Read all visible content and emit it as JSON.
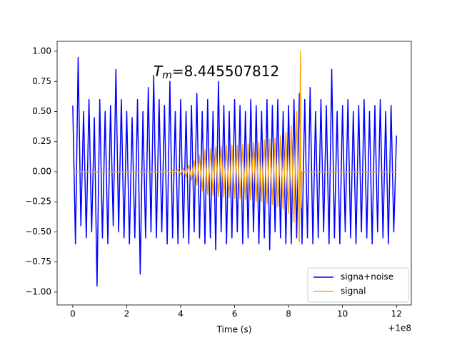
{
  "chart_data": {
    "type": "line",
    "annotation": {
      "symbol": "T",
      "subscript": "m",
      "text": "=8.445507812"
    },
    "x_label": "Time (s)",
    "x_offset_label": "+1e8",
    "xlim": [
      -0.58,
      12.55
    ],
    "xticks": [
      0,
      2,
      4,
      6,
      8,
      10,
      12
    ],
    "ylim": [
      -1.107,
      1.083
    ],
    "yticks": [
      {
        "value": -1,
        "label": "−1.00"
      },
      {
        "value": -0.75,
        "label": "−0.75"
      },
      {
        "value": -0.5,
        "label": "−0.50"
      },
      {
        "value": -0.25,
        "label": "−0.25"
      },
      {
        "value": 0,
        "label": "0.00"
      },
      {
        "value": 0.25,
        "label": "0.25"
      },
      {
        "value": 0.5,
        "label": "0.50"
      },
      {
        "value": 0.75,
        "label": "0.75"
      },
      {
        "value": 1,
        "label": "1.00"
      }
    ],
    "grid": false,
    "legend": "lower right",
    "series": [
      {
        "name": "signa+noise",
        "color": "#0000ff",
        "x": [
          0,
          0.1,
          0.2,
          0.3,
          0.4,
          0.5,
          0.6,
          0.7,
          0.8,
          0.9,
          1,
          1.1,
          1.2,
          1.3,
          1.4,
          1.5,
          1.6,
          1.7,
          1.8,
          1.9,
          2,
          2.1,
          2.2,
          2.3,
          2.4,
          2.5,
          2.6,
          2.7,
          2.8,
          2.9,
          3,
          3.1,
          3.2,
          3.3,
          3.4,
          3.5,
          3.6,
          3.7,
          3.8,
          3.9,
          4,
          4.1,
          4.2,
          4.3,
          4.4,
          4.5,
          4.6,
          4.7,
          4.8,
          4.9,
          5,
          5.1,
          5.2,
          5.3,
          5.4,
          5.5,
          5.6,
          5.7,
          5.8,
          5.9,
          6,
          6.1,
          6.2,
          6.3,
          6.4,
          6.5,
          6.6,
          6.7,
          6.8,
          6.9,
          7,
          7.1,
          7.2,
          7.3,
          7.4,
          7.5,
          7.6,
          7.7,
          7.8,
          7.9,
          8,
          8.1,
          8.2,
          8.3,
          8.4,
          8.5,
          8.6,
          8.7,
          8.8,
          8.9,
          9,
          9.1,
          9.2,
          9.3,
          9.4,
          9.5,
          9.6,
          9.7,
          9.8,
          9.9,
          10,
          10.1,
          10.2,
          10.3,
          10.4,
          10.5,
          10.6,
          10.7,
          10.8,
          10.9,
          11,
          11.1,
          11.2,
          11.3,
          11.4,
          11.5,
          11.6,
          11.7,
          11.8,
          11.9,
          12
        ],
        "values": [
          0.55,
          -0.6,
          0.95,
          -0.45,
          0.5,
          -0.55,
          0.6,
          -0.5,
          0.45,
          -0.95,
          0.6,
          -0.55,
          0.5,
          -0.6,
          0.55,
          -0.45,
          0.85,
          -0.5,
          0.6,
          -0.55,
          0.5,
          -0.6,
          0.45,
          -0.55,
          0.6,
          -0.85,
          0.5,
          -0.55,
          0.7,
          -0.5,
          0.8,
          -0.55,
          0.6,
          -0.5,
          0.55,
          -0.6,
          0.75,
          -0.55,
          0.5,
          -0.6,
          0.6,
          -0.55,
          0.5,
          -0.6,
          0.55,
          -0.5,
          0.65,
          -0.55,
          0.5,
          -0.6,
          0.6,
          -0.55,
          0.5,
          -0.65,
          0.75,
          -0.5,
          0.55,
          -0.6,
          0.5,
          -0.55,
          0.6,
          -0.5,
          0.55,
          -0.6,
          0.5,
          -0.55,
          0.6,
          -0.5,
          0.55,
          -0.6,
          0.5,
          -0.55,
          0.6,
          -0.65,
          0.55,
          -0.5,
          0.6,
          -0.55,
          0.5,
          -0.6,
          0.55,
          -0.6,
          0.6,
          -0.55,
          0.65,
          -0.6,
          0.6,
          -0.55,
          0.7,
          -0.6,
          0.5,
          -0.55,
          0.6,
          -0.5,
          0.55,
          -0.6,
          0.85,
          -0.55,
          0.5,
          -0.6,
          0.55,
          -0.5,
          0.6,
          -0.55,
          0.5,
          -0.6,
          0.55,
          -0.5,
          0.6,
          -0.55,
          0.5,
          -0.6,
          0.55,
          -0.5,
          0.6,
          -0.55,
          0.5,
          -0.6,
          0.55,
          -0.5,
          0.3
        ]
      },
      {
        "name": "signal",
        "color": "#ffa500",
        "x": [
          0,
          3.4,
          3.5,
          3.6,
          3.7,
          3.8,
          3.9,
          4,
          4.1,
          4.2,
          4.3,
          4.4,
          4.5,
          4.6,
          4.7,
          4.8,
          4.9,
          5,
          5.1,
          5.2,
          5.3,
          5.4,
          5.5,
          5.6,
          5.7,
          5.8,
          5.9,
          6,
          6.1,
          6.2,
          6.3,
          6.4,
          6.5,
          6.6,
          6.7,
          6.8,
          6.9,
          7,
          7.1,
          7.2,
          7.3,
          7.4,
          7.5,
          7.6,
          7.7,
          7.8,
          7.9,
          8,
          8.1,
          8.2,
          8.3,
          8.4,
          8.44,
          8.46,
          8.5,
          12
        ],
        "values": [
          0,
          0,
          0.005,
          -0.007,
          0.009,
          -0.01,
          0.015,
          -0.02,
          0.03,
          -0.04,
          0.055,
          -0.07,
          0.09,
          -0.11,
          0.135,
          -0.16,
          0.18,
          -0.19,
          0.195,
          -0.2,
          0.205,
          -0.21,
          0.21,
          -0.21,
          0.215,
          -0.215,
          0.22,
          -0.22,
          0.22,
          -0.225,
          0.225,
          -0.23,
          0.23,
          -0.235,
          0.24,
          -0.245,
          0.245,
          -0.25,
          0.26,
          -0.265,
          0.27,
          -0.275,
          0.28,
          -0.29,
          0.3,
          -0.31,
          0.33,
          -0.35,
          0.38,
          -0.42,
          0.5,
          -0.58,
          1,
          -0.3,
          0,
          0
        ]
      }
    ]
  }
}
